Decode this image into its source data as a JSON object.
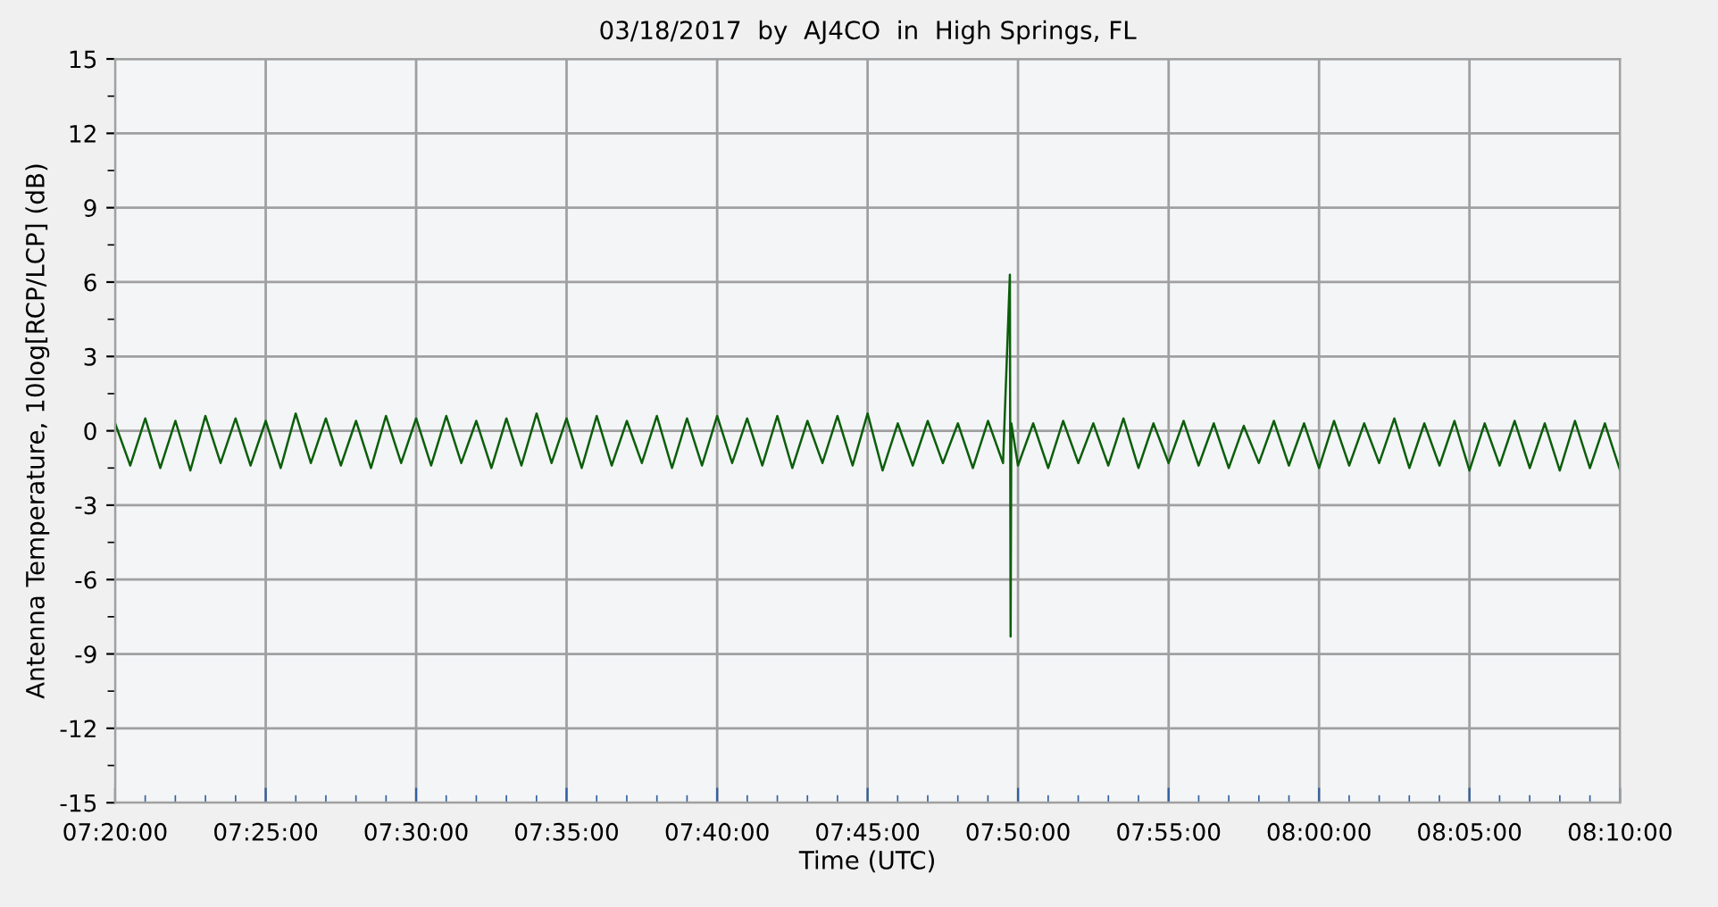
{
  "chart_data": {
    "type": "line",
    "title": "03/18/2017  by  AJ4CO  in  High Springs, FL",
    "xlabel": "Time (UTC)",
    "ylabel": "Antenna Temperature, 10log[RCP/LCP] (dB)",
    "xlim": [
      7.3333,
      8.1667
    ],
    "xticks": [
      {
        "value": 7.3333,
        "label": "07:20:00"
      },
      {
        "value": 7.4167,
        "label": "07:25:00"
      },
      {
        "value": 7.5,
        "label": "07:30:00"
      },
      {
        "value": 7.5833,
        "label": "07:35:00"
      },
      {
        "value": 7.6667,
        "label": "07:40:00"
      },
      {
        "value": 7.75,
        "label": "07:45:00"
      },
      {
        "value": 7.8333,
        "label": "07:50:00"
      },
      {
        "value": 7.9167,
        "label": "07:55:00"
      },
      {
        "value": 8.0,
        "label": "08:00:00"
      },
      {
        "value": 8.0833,
        "label": "08:05:00"
      },
      {
        "value": 8.1667,
        "label": "08:10:00"
      }
    ],
    "ylim": [
      -15,
      15
    ],
    "yticks": [
      -15,
      -12,
      -9,
      -6,
      -3,
      0,
      3,
      6,
      9,
      12,
      15
    ],
    "grid": true,
    "marker": "none",
    "line_style": "solid",
    "series": [
      {
        "color": "#0b5e0b",
        "x": [
          7.3333,
          7.3417,
          7.35,
          7.3583,
          7.3667,
          7.375,
          7.3833,
          7.3917,
          7.4,
          7.4083,
          7.4167,
          7.425,
          7.4333,
          7.4417,
          7.45,
          7.4583,
          7.4667,
          7.475,
          7.4833,
          7.4917,
          7.5,
          7.5083,
          7.5167,
          7.525,
          7.5333,
          7.5417,
          7.55,
          7.5583,
          7.5667,
          7.575,
          7.5833,
          7.5917,
          7.6,
          7.6083,
          7.6167,
          7.625,
          7.6333,
          7.6417,
          7.65,
          7.6583,
          7.6667,
          7.675,
          7.6833,
          7.6917,
          7.7,
          7.7083,
          7.7167,
          7.725,
          7.7333,
          7.7417,
          7.75,
          7.7583,
          7.7667,
          7.775,
          7.7833,
          7.7917,
          7.8,
          7.8083,
          7.8167,
          7.825,
          7.8288,
          7.8292,
          7.8296,
          7.8333,
          7.8417,
          7.85,
          7.8583,
          7.8667,
          7.875,
          7.8833,
          7.8917,
          7.9,
          7.9083,
          7.9167,
          7.925,
          7.9333,
          7.9417,
          7.95,
          7.9583,
          7.9667,
          7.975,
          7.9833,
          7.9917,
          8.0,
          8.0083,
          8.0167,
          8.025,
          8.0333,
          8.0417,
          8.05,
          8.0583,
          8.0667,
          8.075,
          8.0833,
          8.0917,
          8.1,
          8.1083,
          8.1167,
          8.125,
          8.1333,
          8.1417,
          8.15,
          8.1583,
          8.1667
        ],
        "values": [
          0.3,
          -1.4,
          0.5,
          -1.5,
          0.4,
          -1.6,
          0.6,
          -1.3,
          0.5,
          -1.4,
          0.4,
          -1.5,
          0.7,
          -1.3,
          0.5,
          -1.4,
          0.4,
          -1.5,
          0.6,
          -1.3,
          0.5,
          -1.4,
          0.6,
          -1.3,
          0.4,
          -1.5,
          0.5,
          -1.4,
          0.7,
          -1.3,
          0.5,
          -1.5,
          0.6,
          -1.4,
          0.4,
          -1.3,
          0.6,
          -1.5,
          0.5,
          -1.4,
          0.6,
          -1.3,
          0.5,
          -1.4,
          0.6,
          -1.5,
          0.4,
          -1.3,
          0.6,
          -1.4,
          0.7,
          -1.6,
          0.3,
          -1.4,
          0.4,
          -1.3,
          0.3,
          -1.5,
          0.4,
          -1.3,
          6.3,
          -8.3,
          0.3,
          -1.4,
          0.3,
          -1.5,
          0.4,
          -1.3,
          0.3,
          -1.4,
          0.5,
          -1.5,
          0.3,
          -1.3,
          0.4,
          -1.4,
          0.3,
          -1.5,
          0.2,
          -1.3,
          0.4,
          -1.4,
          0.3,
          -1.5,
          0.4,
          -1.4,
          0.3,
          -1.3,
          0.5,
          -1.5,
          0.3,
          -1.4,
          0.4,
          -1.6,
          0.3,
          -1.4,
          0.4,
          -1.5,
          0.3,
          -1.6,
          0.4,
          -1.5,
          0.3,
          -1.6
        ]
      }
    ]
  }
}
